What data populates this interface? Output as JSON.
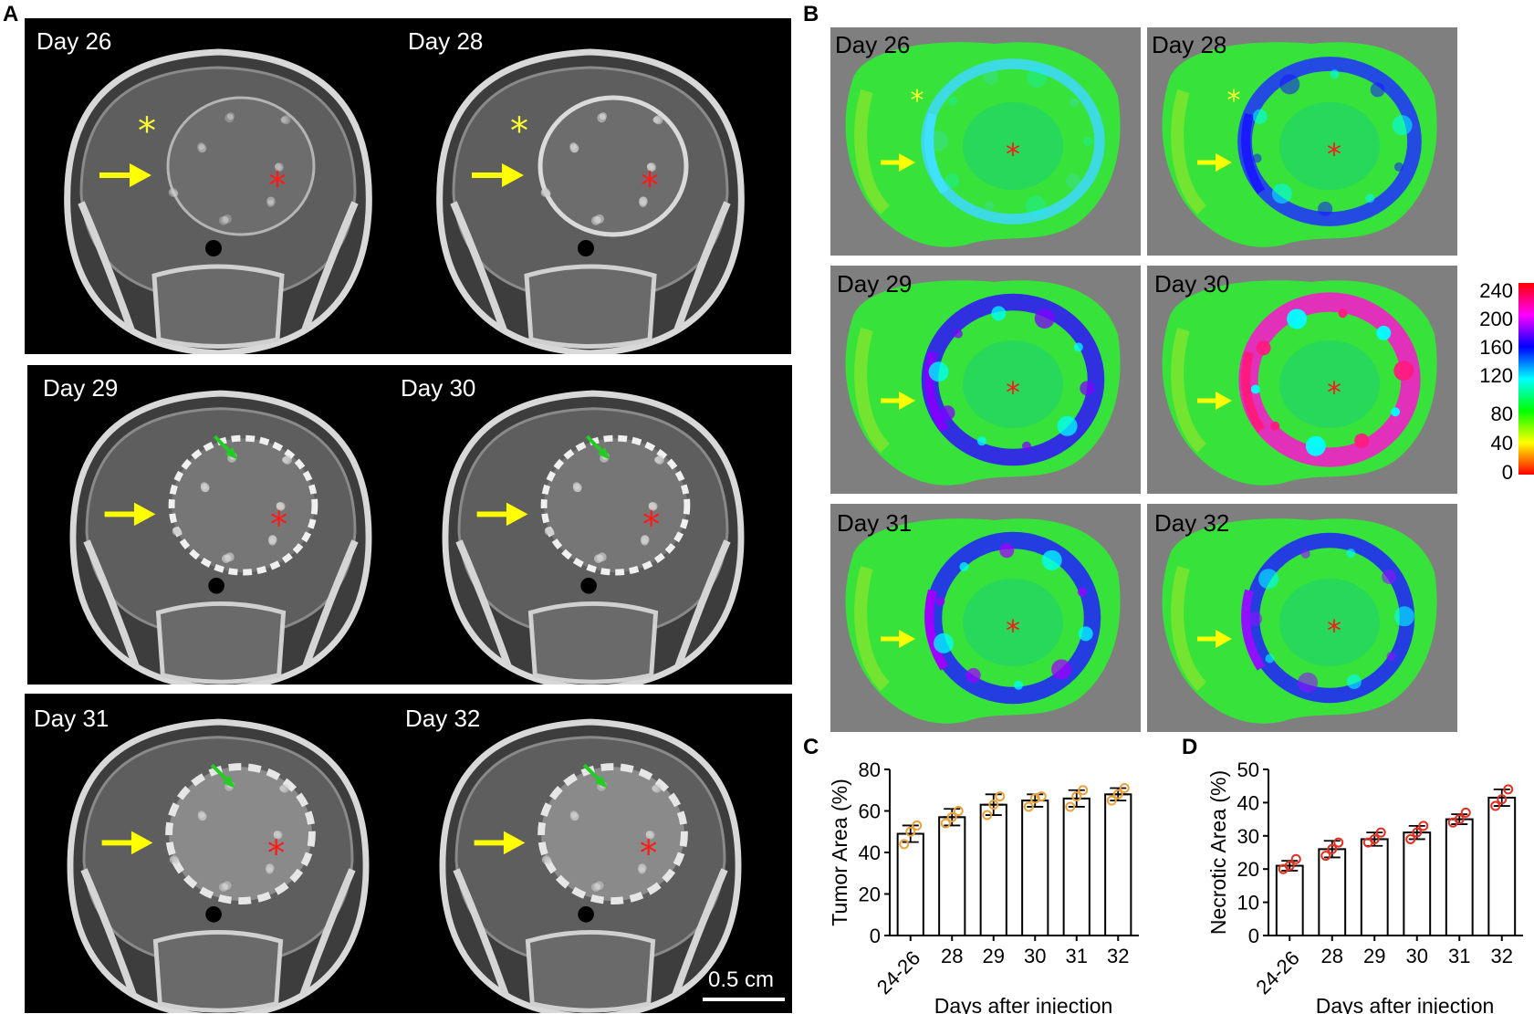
{
  "panels": {
    "a": "A",
    "b": "B",
    "c": "C",
    "d": "D"
  },
  "panel_a": {
    "rows": [
      {
        "left": "Day 26",
        "right": "Day 28"
      },
      {
        "left": "Day 29",
        "right": "Day 30"
      },
      {
        "left": "Day 31",
        "right": "Day 32"
      }
    ],
    "scale_bar": "0.5 cm"
  },
  "panel_b": {
    "tiles": [
      "Day 26",
      "Day 28",
      "Day 29",
      "Day 30",
      "Day 31",
      "Day 32"
    ],
    "colorbar": {
      "ticks": [
        "240",
        "200",
        "160",
        "120",
        "80",
        "40",
        "0"
      ],
      "colors": [
        "#ff0000",
        "#ff00ff",
        "#0000ff",
        "#00ffff",
        "#00ff00",
        "#ffff00",
        "#ff0000"
      ]
    }
  },
  "colors": {
    "tumor_marker": "#ff1a1a",
    "normal_marker": "#ffff33",
    "arrow": "#ffff00",
    "necrosis_arrow": "#22cc22"
  },
  "chart_data": [
    {
      "type": "bar",
      "categories": [
        "24-26",
        "28",
        "29",
        "30",
        "31",
        "32"
      ],
      "values": [
        49,
        57,
        63,
        65,
        66,
        68
      ],
      "errors": [
        4,
        4,
        5,
        3,
        4,
        3
      ],
      "points": [
        [
          44,
          50,
          53
        ],
        [
          54,
          57,
          60
        ],
        [
          58,
          63,
          67
        ],
        [
          62,
          66,
          67
        ],
        [
          62,
          67,
          70
        ],
        [
          65,
          68,
          71
        ]
      ],
      "point_color": "#e8a33c",
      "xlabel": "Days after injection",
      "ylabel": "Tumor Area (%)",
      "yticks": [
        "0",
        "20",
        "40",
        "60",
        "80"
      ],
      "ylim": [
        0,
        80
      ]
    },
    {
      "type": "bar",
      "categories": [
        "24-26",
        "28",
        "29",
        "30",
        "31",
        "32"
      ],
      "values": [
        21,
        26,
        29,
        31,
        35,
        41.5
      ],
      "errors": [
        1.5,
        2.5,
        2,
        2,
        1.5,
        2.5
      ],
      "points": [
        [
          20,
          21,
          23
        ],
        [
          24,
          26,
          28
        ],
        [
          28,
          29,
          31
        ],
        [
          29,
          31,
          33
        ],
        [
          34,
          35,
          37
        ],
        [
          39,
          41,
          44
        ]
      ],
      "point_color": "#e03020",
      "xlabel": "Days after injection",
      "ylabel": "Necrotic Area (%)",
      "yticks": [
        "0",
        "10",
        "20",
        "30",
        "40",
        "50"
      ],
      "ylim": [
        0,
        50
      ]
    }
  ]
}
